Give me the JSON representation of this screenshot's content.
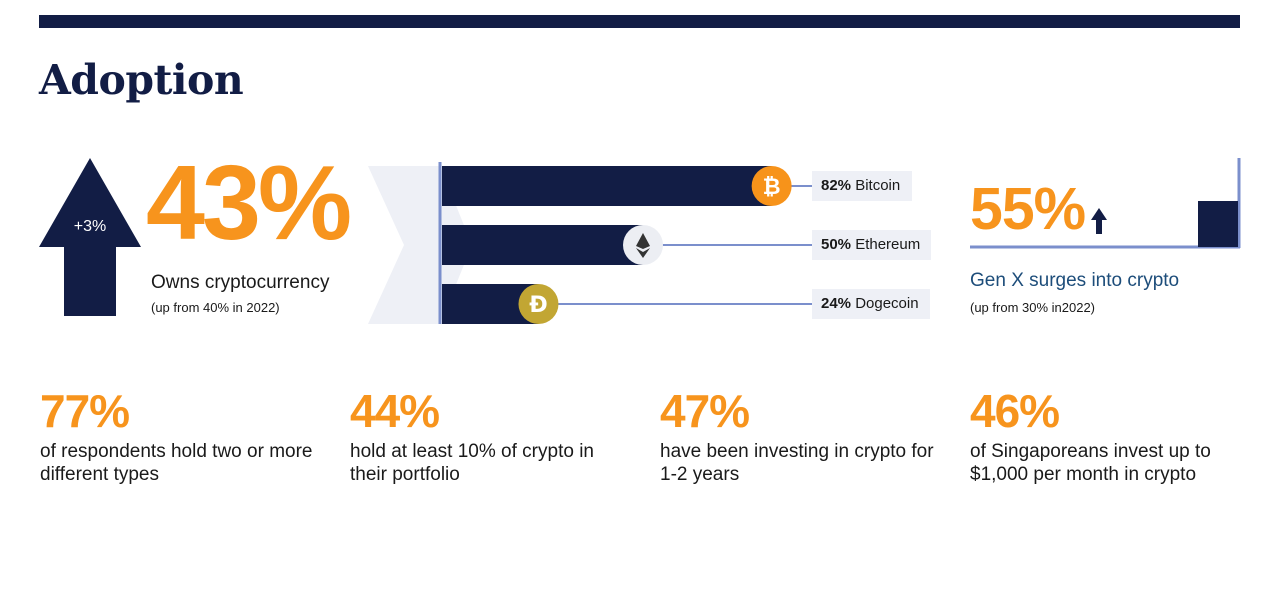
{
  "title": "Adoption",
  "ownership": {
    "change": "+3%",
    "value": "43%",
    "label": "Owns cryptocurrency",
    "sub": "(up from 40% in 2022)"
  },
  "chart_data": {
    "type": "bar",
    "orientation": "horizontal",
    "categories": [
      "Bitcoin",
      "Ethereum",
      "Dogecoin"
    ],
    "values": [
      82,
      50,
      24
    ],
    "unit": "%",
    "icons": [
      "bitcoin-icon",
      "ethereum-icon",
      "dogecoin-icon"
    ],
    "labels": [
      {
        "pct": "82%",
        "name": "Bitcoin"
      },
      {
        "pct": "50%",
        "name": "Ethereum"
      },
      {
        "pct": "24%",
        "name": "Dogecoin"
      }
    ]
  },
  "genx": {
    "value": "55%",
    "label": "Gen X surges into crypto",
    "sub": "(up from 30% in2022)"
  },
  "stats": [
    {
      "pct": "77%",
      "desc": "of respondents hold two or more different types"
    },
    {
      "pct": "44%",
      "desc": "hold at least 10% of crypto in their portfolio"
    },
    {
      "pct": "47%",
      "desc": "have been investing in crypto for 1-2 years"
    },
    {
      "pct": "46%",
      "desc": "of Singaporeans invest up to $1,000 per month in crypto"
    }
  ],
  "colors": {
    "navy": "#121d45",
    "orange": "#f7941d",
    "connector": "#7b8fcc",
    "chevron": "#eef0f6",
    "bitcoin": "#f7931a",
    "ethereum": "#eceef3",
    "dogecoin": "#c2a633",
    "genx_label": "#1d4d7a"
  }
}
